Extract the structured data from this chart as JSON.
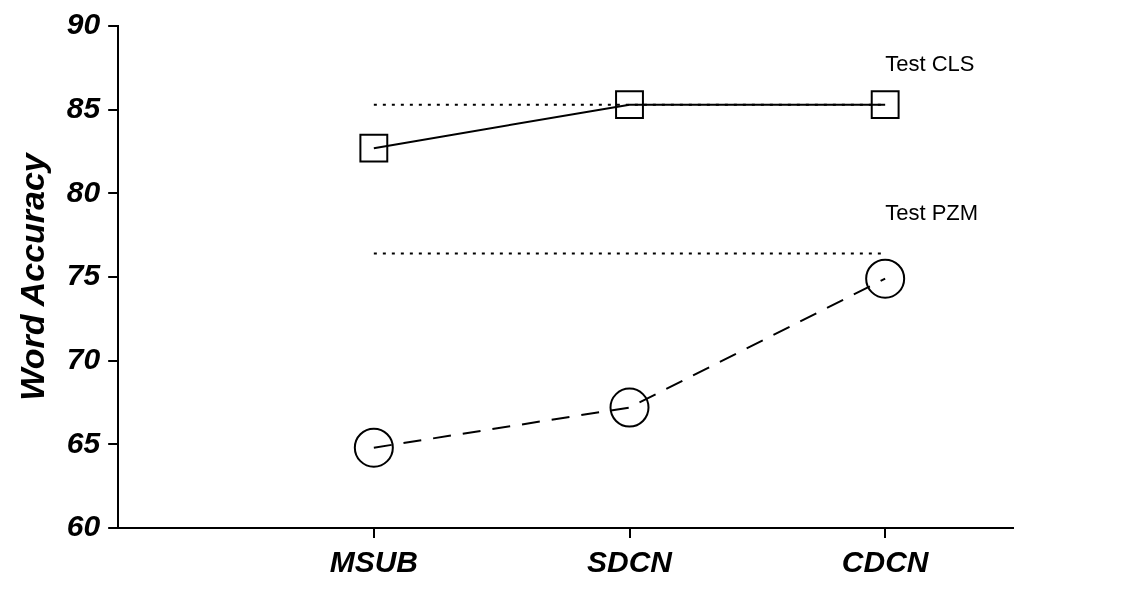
{
  "chart_data": {
    "type": "line",
    "ylabel": "Word Accuracy",
    "categories": [
      "MSUB",
      "SDCN",
      "CDCN"
    ],
    "series": [
      {
        "color": "#000000",
        "values": [
          82.7,
          85.3,
          85.3
        ],
        "marker": "square",
        "line_style": "solid"
      },
      {
        "color": "#000000",
        "values": [
          64.8,
          67.2,
          74.9
        ],
        "marker": "circle",
        "line_style": "dashed"
      }
    ],
    "ylim": [
      60,
      90
    ],
    "yticks": [
      60,
      65,
      70,
      75,
      80,
      85,
      90
    ],
    "grid": false,
    "legend": false,
    "ref_lines": [
      {
        "axis": "y",
        "value": 85.3,
        "label": "Test CLS",
        "color": "#000000",
        "line_style": "dotted"
      },
      {
        "axis": "y",
        "value": 76.4,
        "label": "Test PZM",
        "color": "#000000",
        "line_style": "dotted"
      }
    ]
  }
}
